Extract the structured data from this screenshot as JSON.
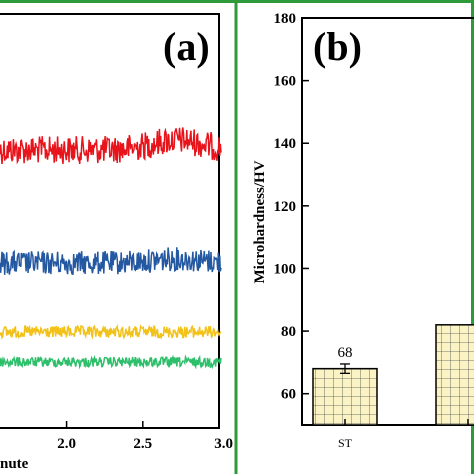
{
  "colors": {
    "frame_green": "#2e9a3a",
    "red": "#e8141c",
    "blue": "#2459a2",
    "yellow": "#f2c21a",
    "green": "#2dbf6a",
    "bar_fill": "#fbf3c4",
    "bar_grid": "#4a4a4a"
  },
  "panel_a": {
    "label": "(a)",
    "x_axis_label_fragment": "nute",
    "x_range": [
      1.55,
      3.0
    ],
    "x_ticks": [
      "2.0",
      "2.5",
      "3.0"
    ],
    "x_tick_values": [
      2.0,
      2.5,
      3.0
    ],
    "series": [
      {
        "color_key": "red",
        "baseline": 150,
        "amplitude": 14,
        "hump": 10
      },
      {
        "color_key": "blue",
        "baseline": 263,
        "amplitude": 12,
        "hump": 4
      },
      {
        "color_key": "yellow",
        "baseline": 332,
        "amplitude": 6,
        "hump": 0
      },
      {
        "color_key": "green",
        "baseline": 362,
        "amplitude": 5,
        "hump": 0
      }
    ]
  },
  "chart_data": {
    "type": "bar",
    "title": "(b)",
    "ylabel": "Microhardness/HV",
    "xlabel": "",
    "ylim": [
      50,
      180
    ],
    "yticks": [
      "60",
      "80",
      "100",
      "120",
      "140",
      "160",
      "180"
    ],
    "ytick_values": [
      60,
      80,
      100,
      120,
      140,
      160,
      180
    ],
    "categories": [
      "ST",
      ""
    ],
    "values": [
      68,
      82
    ],
    "errors": [
      1.5,
      0
    ],
    "data_labels": [
      "68",
      ""
    ]
  }
}
